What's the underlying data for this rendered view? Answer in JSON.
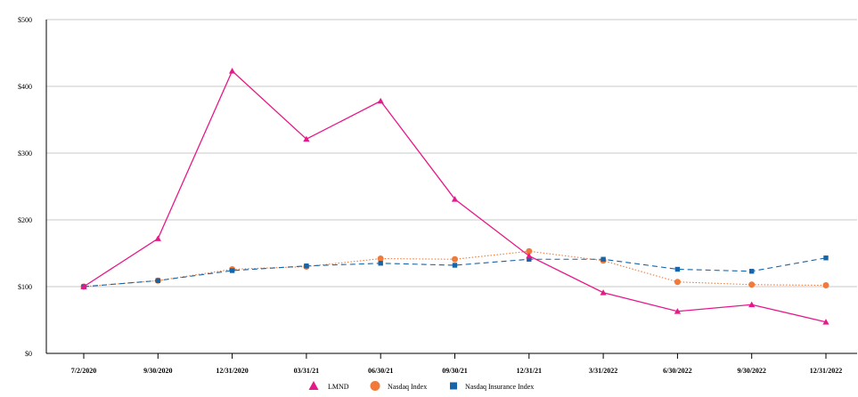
{
  "chart_data": {
    "type": "line",
    "title": "",
    "xlabel": "",
    "ylabel": "",
    "categories": [
      "7/2/2020",
      "9/30/2020",
      "12/31/2020",
      "03/31/21",
      "06/30/21",
      "09/30/21",
      "12/31/21",
      "3/31/2022",
      "6/30/2022",
      "9/30/2022",
      "12/31/2022"
    ],
    "y_ticks": [
      "$0",
      "$100",
      "$200",
      "$300",
      "$400",
      "$500"
    ],
    "y_tick_values": [
      0,
      100,
      200,
      300,
      400,
      500
    ],
    "ylim": [
      0,
      500
    ],
    "grid": true,
    "legend_position": "bottom",
    "series": [
      {
        "name": "LMND",
        "values": [
          100,
          172,
          423,
          321,
          378,
          231,
          146,
          91,
          63,
          73,
          47
        ],
        "color": "#e6198a",
        "marker": "triangle",
        "line_style": "solid"
      },
      {
        "name": "Nasdaq Index",
        "values": [
          100,
          109,
          126,
          130,
          142,
          141,
          153,
          139,
          107,
          103,
          102
        ],
        "color": "#f07a3a",
        "marker": "circle",
        "line_style": "dotted"
      },
      {
        "name": "Nasdaq Insurance Index",
        "values": [
          100,
          109,
          124,
          131,
          135,
          132,
          141,
          141,
          126,
          123,
          143
        ],
        "color": "#1565a8",
        "marker": "square",
        "line_style": "dashed"
      }
    ]
  }
}
